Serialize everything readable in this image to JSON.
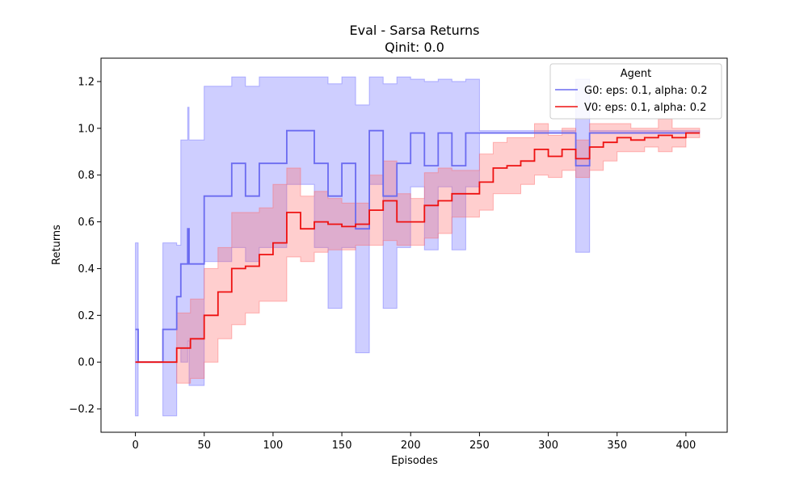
{
  "chart_data": {
    "type": "line",
    "title": "Eval - Sarsa Returns",
    "subtitle": "Qinit: 0.0",
    "xlabel": "Episodes",
    "ylabel": "Returns",
    "xlim": [
      -25,
      430
    ],
    "ylim": [
      -0.3,
      1.3
    ],
    "x_ticks": [
      0,
      50,
      100,
      150,
      200,
      250,
      300,
      350,
      400
    ],
    "y_ticks": [
      -0.2,
      0.0,
      0.2,
      0.4,
      0.6,
      0.8,
      1.0,
      1.2
    ],
    "x_tick_labels": [
      "0",
      "50",
      "100",
      "150",
      "200",
      "250",
      "300",
      "350",
      "400"
    ],
    "y_tick_labels": [
      "−0.2",
      "0.0",
      "0.2",
      "0.4",
      "0.6",
      "0.8",
      "1.0",
      "1.2"
    ],
    "grid": false,
    "legend": {
      "title": "Agent",
      "position": "top-right"
    },
    "series": [
      {
        "name": "G0: eps: 0.1, alpha: 0.2",
        "color": "#6b6bf0",
        "band_color": "#6666ff",
        "x": [
          0,
          1,
          2,
          20,
          30,
          33,
          38,
          39,
          40,
          50,
          60,
          70,
          80,
          90,
          100,
          110,
          130,
          140,
          150,
          160,
          170,
          180,
          190,
          200,
          210,
          220,
          230,
          240,
          250,
          320,
          330,
          410
        ],
        "y": [
          0.14,
          0.14,
          0.0,
          0.14,
          0.28,
          0.42,
          0.57,
          0.42,
          0.42,
          0.71,
          0.71,
          0.85,
          0.71,
          0.85,
          0.85,
          0.99,
          0.85,
          0.71,
          0.85,
          0.57,
          0.99,
          0.71,
          0.85,
          0.98,
          0.84,
          0.98,
          0.84,
          0.98,
          0.98,
          0.84,
          0.98,
          0.98
        ],
        "y_low": [
          -0.23,
          -0.23,
          0.0,
          -0.23,
          0.06,
          0.0,
          0.09,
          -0.1,
          -0.1,
          0.43,
          0.43,
          0.49,
          0.43,
          0.49,
          0.49,
          0.76,
          0.49,
          0.23,
          0.49,
          0.04,
          0.76,
          0.23,
          0.49,
          0.75,
          0.48,
          0.75,
          0.48,
          0.75,
          0.98,
          0.47,
          0.98,
          0.98
        ],
        "y_high": [
          0.51,
          0.51,
          0.0,
          0.51,
          0.5,
          0.95,
          1.09,
          0.95,
          0.95,
          1.18,
          1.18,
          1.22,
          1.18,
          1.22,
          1.22,
          1.22,
          1.22,
          1.19,
          1.22,
          1.1,
          1.22,
          1.19,
          1.22,
          1.21,
          1.2,
          1.21,
          1.2,
          1.21,
          0.99,
          1.21,
          0.99,
          0.99
        ]
      },
      {
        "name": "V0: eps: 0.1, alpha: 0.2",
        "color": "#ee1111",
        "band_color": "#ff6666",
        "x": [
          0,
          30,
          40,
          50,
          60,
          70,
          80,
          90,
          100,
          110,
          120,
          130,
          140,
          150,
          160,
          170,
          180,
          190,
          200,
          210,
          220,
          230,
          240,
          250,
          260,
          270,
          280,
          290,
          300,
          310,
          320,
          330,
          340,
          350,
          360,
          370,
          380,
          390,
          400,
          410
        ],
        "y": [
          0.0,
          0.06,
          0.1,
          0.2,
          0.3,
          0.4,
          0.41,
          0.46,
          0.51,
          0.64,
          0.57,
          0.6,
          0.59,
          0.58,
          0.59,
          0.65,
          0.69,
          0.6,
          0.6,
          0.67,
          0.69,
          0.72,
          0.72,
          0.77,
          0.83,
          0.84,
          0.86,
          0.91,
          0.88,
          0.91,
          0.87,
          0.92,
          0.94,
          0.96,
          0.95,
          0.96,
          0.97,
          0.96,
          0.98,
          0.98
        ],
        "y_low": [
          0.0,
          -0.09,
          -0.07,
          0.0,
          0.1,
          0.16,
          0.21,
          0.26,
          0.26,
          0.45,
          0.43,
          0.47,
          0.48,
          0.48,
          0.5,
          0.5,
          0.52,
          0.5,
          0.5,
          0.53,
          0.55,
          0.62,
          0.62,
          0.65,
          0.72,
          0.72,
          0.76,
          0.8,
          0.79,
          0.82,
          0.79,
          0.82,
          0.86,
          0.9,
          0.9,
          0.92,
          0.9,
          0.92,
          0.96,
          0.96
        ],
        "y_high": [
          0.0,
          0.21,
          0.27,
          0.4,
          0.49,
          0.64,
          0.64,
          0.66,
          0.76,
          0.83,
          0.71,
          0.73,
          0.7,
          0.68,
          0.68,
          0.8,
          0.86,
          0.72,
          0.7,
          0.81,
          0.83,
          0.82,
          0.82,
          0.89,
          0.94,
          0.96,
          0.96,
          1.02,
          0.97,
          1.0,
          0.95,
          1.02,
          1.02,
          1.02,
          1.0,
          1.0,
          1.04,
          1.0,
          1.0,
          1.0
        ]
      }
    ]
  }
}
